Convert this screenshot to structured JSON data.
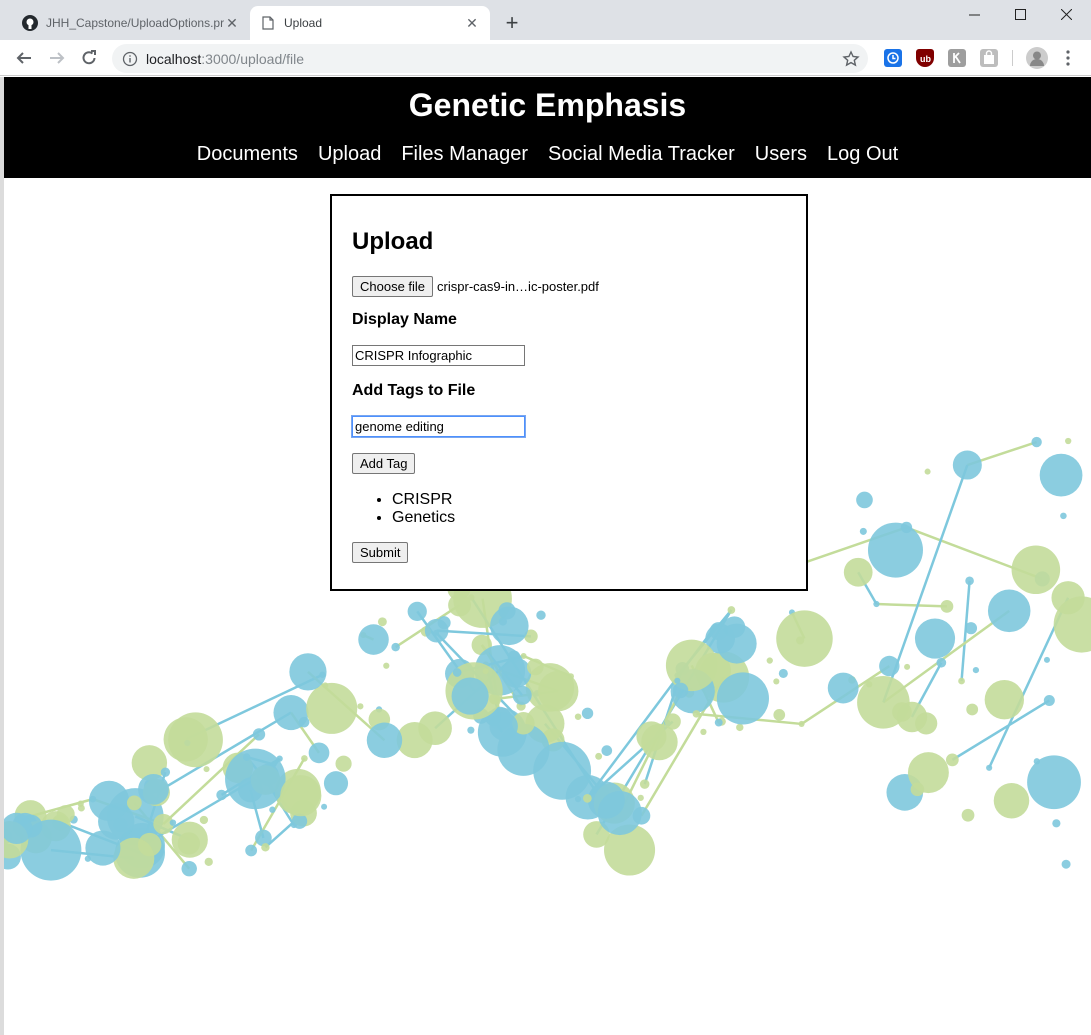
{
  "browser": {
    "tabs": [
      {
        "title": "JHH_Capstone/UploadOptions.pr",
        "icon": "github-icon",
        "active": false
      },
      {
        "title": "Upload",
        "icon": "page-icon",
        "active": true
      }
    ],
    "url_host": "localhost",
    "url_path": ":3000/upload/file",
    "extensions": [
      "clock-icon",
      "ublock-icon",
      "ext-icon",
      "bag-icon"
    ]
  },
  "site": {
    "title": "Genetic Emphasis",
    "nav": [
      "Documents",
      "Upload",
      "Files Manager",
      "Social Media Tracker",
      "Users",
      "Log Out"
    ]
  },
  "form": {
    "heading": "Upload",
    "choose_file_label": "Choose file",
    "file_name": "crispr-cas9-in…ic-poster.pdf",
    "display_name_label": "Display Name",
    "display_name_value": "CRISPR Infographic",
    "tags_label": "Add Tags to File",
    "tag_input_value": "genome editing",
    "add_tag_label": "Add Tag",
    "tags": [
      "CRISPR",
      "Genetics"
    ],
    "submit_label": "Submit"
  },
  "colors": {
    "header_bg": "#000000",
    "bubble_blue": "#7ec8dd",
    "bubble_green": "#c3dc9a"
  }
}
